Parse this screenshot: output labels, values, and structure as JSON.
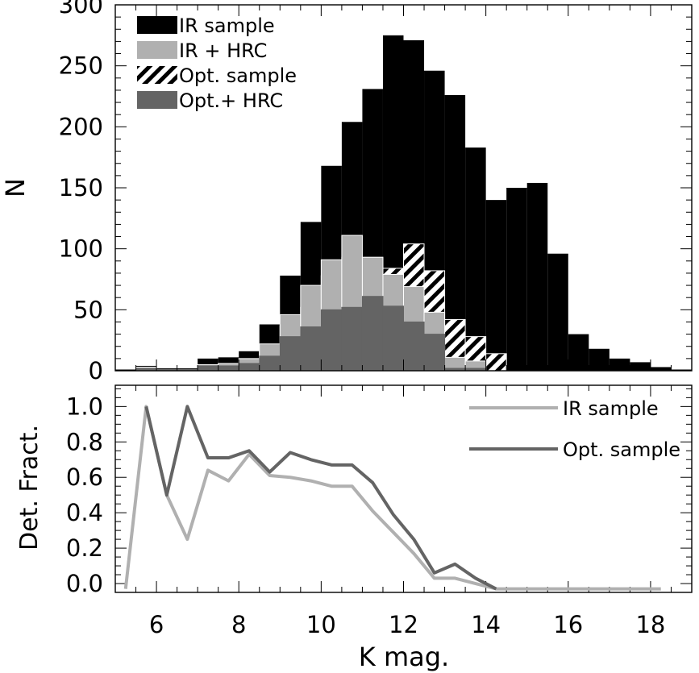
{
  "chart_data": [
    {
      "type": "bar",
      "panel": "top",
      "xlabel": "",
      "ylabel": "N",
      "xlim": [
        5.0,
        19.0
      ],
      "ylim": [
        0,
        300
      ],
      "yticks": [
        0,
        50,
        100,
        150,
        200,
        250,
        300
      ],
      "bin_width": 0.5,
      "bin_starts": [
        5.0,
        5.5,
        6.0,
        6.5,
        7.0,
        7.5,
        8.0,
        8.5,
        9.0,
        9.5,
        10.0,
        10.5,
        11.0,
        11.5,
        12.0,
        12.5,
        13.0,
        13.5,
        14.0,
        14.5,
        15.0,
        15.5,
        16.0,
        16.5,
        17.0,
        17.5,
        18.0,
        18.5
      ],
      "legend_position": "top-left",
      "series": [
        {
          "name": "IR sample",
          "style": "solid",
          "color": "#000000",
          "values": [
            1,
            4,
            2,
            2,
            10,
            11,
            16,
            38,
            78,
            122,
            168,
            204,
            231,
            275,
            271,
            246,
            226,
            183,
            140,
            150,
            154,
            96,
            30,
            18,
            10,
            7,
            3,
            1
          ]
        },
        {
          "name": "IR + HRC",
          "style": "solid",
          "color": "#b0b0b0",
          "values": [
            0,
            3,
            1,
            1,
            5,
            6,
            10,
            22,
            46,
            70,
            91,
            111,
            93,
            79,
            69,
            48,
            11,
            8,
            0,
            0,
            0,
            0,
            0,
            0,
            0,
            0,
            0,
            0
          ]
        },
        {
          "name": "Opt. sample",
          "style": "hatched",
          "color": "#000000",
          "values": [
            0,
            2,
            1,
            1,
            4,
            5,
            8,
            16,
            37,
            52,
            78,
            93,
            93,
            84,
            104,
            82,
            42,
            28,
            14,
            0,
            0,
            0,
            0,
            0,
            0,
            0,
            0,
            0
          ]
        },
        {
          "name": "Opt.+ HRC",
          "style": "solid",
          "color": "#646464",
          "values": [
            0,
            2,
            1,
            1,
            4,
            4,
            6,
            12,
            28,
            36,
            50,
            52,
            61,
            53,
            40,
            30,
            2,
            2,
            0,
            0,
            0,
            0,
            0,
            0,
            0,
            0,
            0,
            0
          ]
        }
      ]
    },
    {
      "type": "line",
      "panel": "bottom",
      "xlabel": "K mag.",
      "ylabel": "Det. Fract.",
      "xlim": [
        5.0,
        19.0
      ],
      "ylim": [
        -0.05,
        1.12
      ],
      "xticks": [
        6,
        8,
        10,
        12,
        14,
        16,
        18
      ],
      "yticks": [
        0.0,
        0.2,
        0.4,
        0.6,
        0.8,
        1.0
      ],
      "ytick_labels": [
        "0.0",
        "0.2",
        "0.4",
        "0.6",
        "0.8",
        "1.0"
      ],
      "legend_position": "top-right",
      "series": [
        {
          "name": "IR sample",
          "color": "#b0b0b0",
          "x": [
            5.25,
            5.75,
            6.25,
            6.75,
            7.25,
            7.75,
            8.25,
            8.75,
            9.25,
            9.75,
            10.25,
            10.75,
            11.25,
            11.75,
            12.25,
            12.75,
            13.25,
            13.75,
            14.25,
            14.75,
            15.25,
            15.75,
            16.25,
            16.75,
            17.25,
            17.75,
            18.25
          ],
          "y": [
            -0.03,
            1.0,
            0.5,
            0.25,
            0.64,
            0.58,
            0.73,
            0.61,
            0.6,
            0.58,
            0.55,
            0.55,
            0.41,
            0.29,
            0.17,
            0.03,
            0.03,
            0.0,
            -0.03,
            -0.03,
            -0.03,
            -0.03,
            -0.03,
            -0.03,
            -0.03,
            -0.03,
            -0.03
          ]
        },
        {
          "name": "Opt. sample",
          "color": "#646464",
          "x": [
            5.75,
            6.25,
            6.75,
            7.25,
            7.75,
            8.25,
            8.75,
            9.25,
            9.75,
            10.25,
            10.75,
            11.25,
            11.75,
            12.25,
            12.75,
            13.25,
            13.75,
            14.25
          ],
          "y": [
            1.0,
            0.5,
            1.0,
            0.71,
            0.71,
            0.75,
            0.63,
            0.74,
            0.7,
            0.67,
            0.67,
            0.57,
            0.39,
            0.25,
            0.06,
            0.11,
            0.03,
            -0.03
          ]
        }
      ]
    }
  ]
}
